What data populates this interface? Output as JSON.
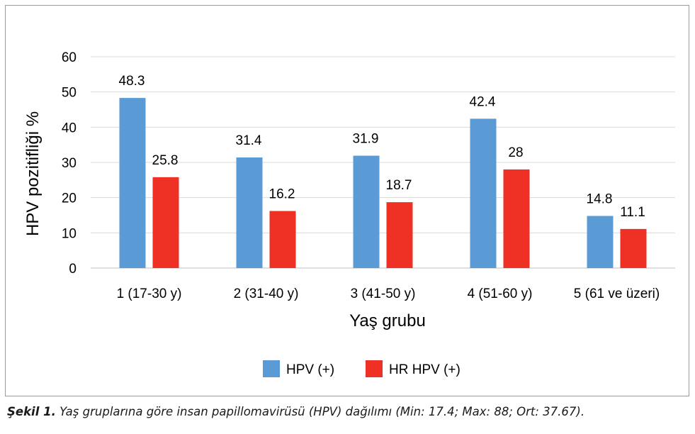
{
  "chart_data": {
    "type": "bar",
    "categories": [
      "1 (17-30 y)",
      "2 (31-40 y)",
      "3 (41-50 y)",
      "4 (51-60 y)",
      "5 (61 ve üzeri)"
    ],
    "series": [
      {
        "name": "HPV (+)",
        "values": [
          48.3,
          31.4,
          31.9,
          42.4,
          14.8
        ],
        "labels": [
          "48.3",
          "31.4",
          "31.9",
          "42.4",
          "14.8"
        ],
        "color": "#5b9bd5"
      },
      {
        "name": "HR HPV (+)",
        "values": [
          25.8,
          16.2,
          18.7,
          28,
          11.1
        ],
        "labels": [
          "25.8",
          "16.2",
          "18.7",
          "28",
          "11.1"
        ],
        "color": "#ee3124"
      }
    ],
    "xlabel": "Yaş grubu",
    "ylabel": "HPV pozitifliği %",
    "ylim": [
      0,
      60
    ],
    "yticks": [
      0,
      10,
      20,
      30,
      40,
      50,
      60
    ],
    "grid": true,
    "legend_position": "bottom"
  },
  "caption": {
    "label": "Şekil 1.",
    "text": "Yaş gruplarına göre insan papillomavirüsü (HPV) dağılımı (Min: 17.4; Max: 88; Ort: 37.67)."
  }
}
